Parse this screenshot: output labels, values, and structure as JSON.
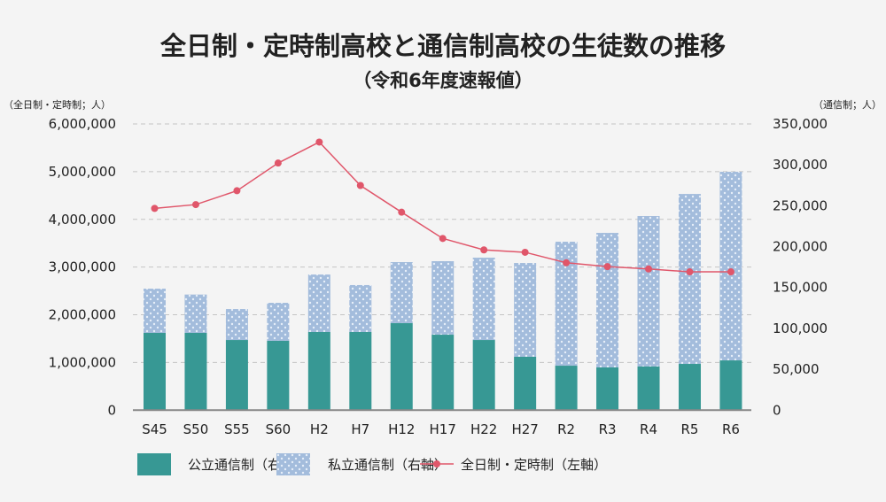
{
  "chart_data": {
    "type": "bar",
    "title": "全日制・定時制高校と通信制高校の生徒数の推移",
    "subtitle": "（令和6年度速報値）",
    "left_axis_unit": "（全日制・定時制；人）",
    "right_axis_unit": "（通信制；人）",
    "categories": [
      "S45",
      "S50",
      "S55",
      "S60",
      "H2",
      "H7",
      "H12",
      "H17",
      "H22",
      "H27",
      "R2",
      "R3",
      "R4",
      "R5",
      "R6"
    ],
    "left_ylim": [
      0,
      6000000
    ],
    "left_ticks": [
      "0",
      "1,000,000",
      "2,000,000",
      "3,000,000",
      "4,000,000",
      "5,000,000",
      "6,000,000"
    ],
    "right_ylim": [
      0,
      350000
    ],
    "right_ticks": [
      "0",
      "50,000",
      "100,000",
      "150,000",
      "200,000",
      "250,000",
      "300,000",
      "350,000"
    ],
    "grid": true,
    "legend_position": "bottom",
    "series": [
      {
        "name": "公立通信制（右軸）",
        "kind": "stacked-bar",
        "axis": "right",
        "color": "#379894",
        "values": [
          94500,
          94500,
          85800,
          84800,
          95600,
          95600,
          106400,
          92300,
          85800,
          65300,
          54400,
          52300,
          53400,
          56600,
          60900
        ]
      },
      {
        "name": "私立通信制（右軸）",
        "kind": "stacked-bar",
        "axis": "right",
        "color": "#a3bcdc",
        "values": [
          54100,
          46900,
          37900,
          46500,
          70300,
          57400,
          74700,
          89900,
          100700,
          114700,
          151600,
          164500,
          184000,
          207800,
          230600
        ]
      },
      {
        "name": "全日制・定時制（左軸）",
        "kind": "line",
        "axis": "left",
        "color": "#e0566a",
        "values": [
          4230000,
          4310000,
          4600000,
          5180000,
          5620000,
          4710000,
          4150000,
          3600000,
          3360000,
          3310000,
          3090000,
          3010000,
          2960000,
          2900000,
          2900000
        ]
      }
    ]
  }
}
